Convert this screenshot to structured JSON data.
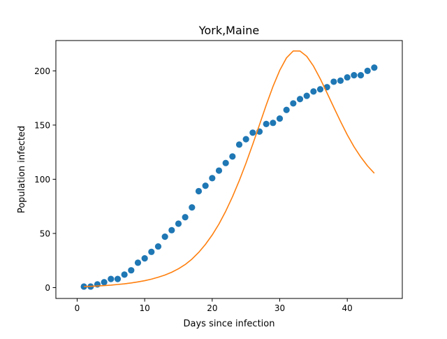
{
  "chart_data": {
    "type": "scatter",
    "title": "York,Maine",
    "xlabel": "Days since infection",
    "ylabel": "Population infected",
    "xlim": [
      -3.15,
      48.15
    ],
    "ylim": [
      -10,
      228
    ],
    "xticks": [
      0,
      10,
      20,
      30,
      40
    ],
    "yticks": [
      0,
      50,
      100,
      150,
      200
    ],
    "grid": false,
    "legend": "none",
    "series": [
      {
        "kind": "scatter",
        "color": "#1f77b4",
        "x": [
          1,
          2,
          3,
          4,
          5,
          6,
          7,
          8,
          9,
          10,
          11,
          12,
          13,
          14,
          15,
          16,
          17,
          18,
          19,
          20,
          21,
          22,
          23,
          24,
          25,
          26,
          27,
          28,
          29,
          30,
          31,
          32,
          33,
          34,
          35,
          36,
          37,
          38,
          39,
          40,
          41,
          42,
          43,
          44
        ],
        "y": [
          1,
          1,
          3,
          5,
          8,
          8,
          12,
          16,
          23,
          27,
          33,
          38,
          47,
          53,
          59,
          65,
          74,
          89,
          94,
          101,
          108,
          115,
          121,
          132,
          137,
          143,
          144,
          151,
          152,
          156,
          164,
          170,
          174,
          177,
          181,
          183,
          185,
          190,
          191,
          194,
          196,
          196,
          200,
          203
        ]
      },
      {
        "kind": "line",
        "color": "#ff7f0e",
        "x": [
          1,
          2,
          3,
          4,
          5,
          6,
          7,
          8,
          9,
          10,
          11,
          12,
          13,
          14,
          15,
          16,
          17,
          18,
          19,
          20,
          21,
          22,
          23,
          24,
          25,
          26,
          27,
          28,
          29,
          30,
          31,
          32,
          33,
          34,
          35,
          36,
          37,
          38,
          39,
          40,
          41,
          42,
          43,
          44
        ],
        "y": [
          1,
          1.2,
          1.5,
          1.9,
          2.3,
          2.9,
          3.5,
          4.3,
          5.3,
          6.4,
          7.8,
          9.6,
          11.6,
          14.2,
          17.4,
          21.3,
          26.3,
          32.5,
          39.9,
          48.6,
          58.7,
          70.5,
          83.8,
          98.6,
          114.8,
          132.2,
          150.3,
          168.5,
          185.6,
          200.5,
          212,
          218.4,
          218.3,
          213.4,
          204.4,
          192.7,
          179.7,
          166.4,
          153.4,
          141,
          130,
          120.5,
          112.3,
          105.6
        ]
      }
    ]
  }
}
